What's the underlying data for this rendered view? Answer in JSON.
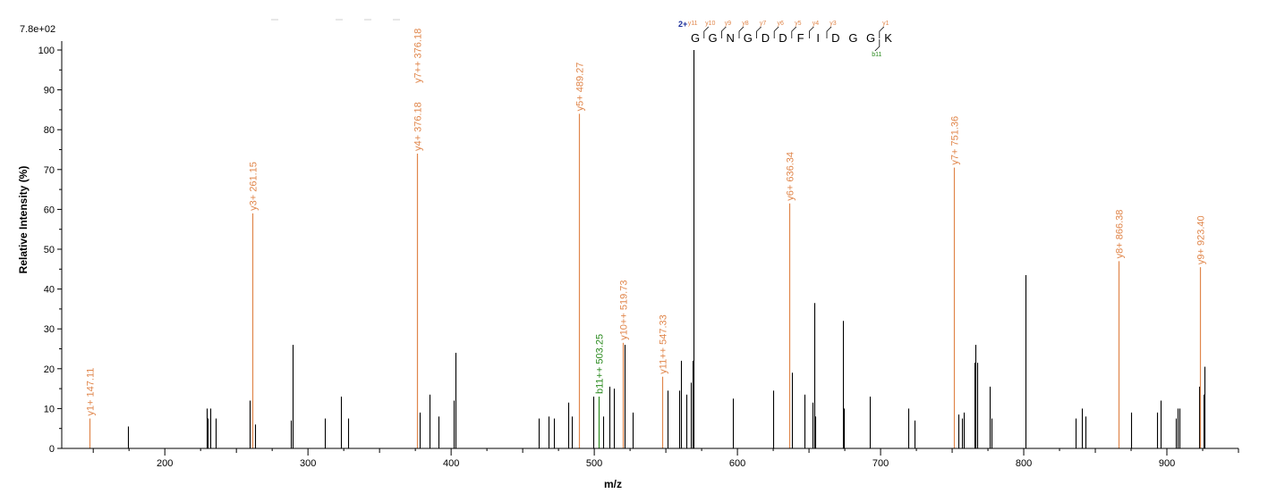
{
  "chart_data": {
    "type": "bar",
    "title": "",
    "xlabel": "m/z",
    "ylabel": "Relative  Intensity (%)",
    "scale_label": "7.8e+02",
    "xlim": [
      128,
      950
    ],
    "ylim": [
      0,
      100
    ],
    "x_ticks": [
      200,
      300,
      400,
      500,
      600,
      700,
      800,
      900
    ],
    "y_ticks": [
      0,
      10,
      20,
      30,
      40,
      50,
      60,
      70,
      80,
      90,
      100
    ],
    "colors": {
      "unannotated": "#000000",
      "y_ion": "#E0864B",
      "b_ion": "#2A8A1E",
      "charge": "#1B2E9A",
      "axis": "#000000"
    },
    "peaks": [
      {
        "mz": 147.11,
        "intensity": 7.5,
        "ion": "y",
        "label": "y1+ 147.11"
      },
      {
        "mz": 174.0,
        "intensity": 5.5
      },
      {
        "mz": 229.0,
        "intensity": 10
      },
      {
        "mz": 230.0,
        "intensity": 7.5
      },
      {
        "mz": 231.5,
        "intensity": 10
      },
      {
        "mz": 235.5,
        "intensity": 7.5
      },
      {
        "mz": 259.5,
        "intensity": 12
      },
      {
        "mz": 261.15,
        "intensity": 59,
        "ion": "y",
        "label": "y3+ 261.15"
      },
      {
        "mz": 263.0,
        "intensity": 6
      },
      {
        "mz": 288.0,
        "intensity": 7
      },
      {
        "mz": 289.0,
        "intensity": 26
      },
      {
        "mz": 312.0,
        "intensity": 7.5
      },
      {
        "mz": 323.0,
        "intensity": 13
      },
      {
        "mz": 328.0,
        "intensity": 7.5
      },
      {
        "mz": 376.18,
        "intensity": 74,
        "ion": "y",
        "label": "y4+ 376.18",
        "label2": "y7++ 376.18"
      },
      {
        "mz": 378.0,
        "intensity": 9
      },
      {
        "mz": 385.0,
        "intensity": 13.5
      },
      {
        "mz": 391.0,
        "intensity": 8
      },
      {
        "mz": 401.5,
        "intensity": 12
      },
      {
        "mz": 403.0,
        "intensity": 24
      },
      {
        "mz": 461.0,
        "intensity": 7.5
      },
      {
        "mz": 468.0,
        "intensity": 8
      },
      {
        "mz": 471.5,
        "intensity": 7.5
      },
      {
        "mz": 481.5,
        "intensity": 11.5
      },
      {
        "mz": 484.5,
        "intensity": 8
      },
      {
        "mz": 489.27,
        "intensity": 84,
        "ion": "y",
        "label": "y5+ 489.27"
      },
      {
        "mz": 499.5,
        "intensity": 13
      },
      {
        "mz": 503.25,
        "intensity": 13,
        "ion": "b",
        "label": "b11++ 503.25"
      },
      {
        "mz": 506.0,
        "intensity": 8
      },
      {
        "mz": 510.5,
        "intensity": 15.5
      },
      {
        "mz": 513.5,
        "intensity": 15
      },
      {
        "mz": 519.73,
        "intensity": 26.5,
        "ion": "y",
        "label": "y10++ 519.73"
      },
      {
        "mz": 521.0,
        "intensity": 26
      },
      {
        "mz": 526.5,
        "intensity": 9
      },
      {
        "mz": 547.33,
        "intensity": 18,
        "ion": "y",
        "label": "y11++ 547.33"
      },
      {
        "mz": 551.0,
        "intensity": 14.5
      },
      {
        "mz": 559.5,
        "intensity": 14.5
      },
      {
        "mz": 560.5,
        "intensity": 22
      },
      {
        "mz": 564.5,
        "intensity": 13.5
      },
      {
        "mz": 567.5,
        "intensity": 16.5
      },
      {
        "mz": 568.5,
        "intensity": 22
      },
      {
        "mz": 569.5,
        "intensity": 100
      },
      {
        "mz": 597.0,
        "intensity": 12.5
      },
      {
        "mz": 625.0,
        "intensity": 14.5
      },
      {
        "mz": 636.34,
        "intensity": 61.5,
        "ion": "y",
        "label": "y6+ 636.34"
      },
      {
        "mz": 638.0,
        "intensity": 19
      },
      {
        "mz": 647.0,
        "intensity": 13.5
      },
      {
        "mz": 652.5,
        "intensity": 11.5
      },
      {
        "mz": 653.5,
        "intensity": 36.5
      },
      {
        "mz": 654.5,
        "intensity": 8
      },
      {
        "mz": 673.5,
        "intensity": 32
      },
      {
        "mz": 674.5,
        "intensity": 10
      },
      {
        "mz": 692.5,
        "intensity": 13
      },
      {
        "mz": 719.5,
        "intensity": 10
      },
      {
        "mz": 724.0,
        "intensity": 7
      },
      {
        "mz": 751.36,
        "intensity": 70.5,
        "ion": "y",
        "label": "y7+ 751.36"
      },
      {
        "mz": 754.5,
        "intensity": 8.5
      },
      {
        "mz": 757.0,
        "intensity": 7.5
      },
      {
        "mz": 758.0,
        "intensity": 9
      },
      {
        "mz": 765.5,
        "intensity": 21.5
      },
      {
        "mz": 766.5,
        "intensity": 26
      },
      {
        "mz": 767.5,
        "intensity": 21.5
      },
      {
        "mz": 776.5,
        "intensity": 15.5
      },
      {
        "mz": 777.5,
        "intensity": 7.5
      },
      {
        "mz": 801.0,
        "intensity": 43.5
      },
      {
        "mz": 836.0,
        "intensity": 7.5
      },
      {
        "mz": 840.5,
        "intensity": 10
      },
      {
        "mz": 843.0,
        "intensity": 8
      },
      {
        "mz": 866.38,
        "intensity": 47,
        "ion": "y",
        "label": "y8+ 866.38"
      },
      {
        "mz": 875.0,
        "intensity": 9
      },
      {
        "mz": 893.0,
        "intensity": 9
      },
      {
        "mz": 895.5,
        "intensity": 12
      },
      {
        "mz": 906.0,
        "intensity": 7.5
      },
      {
        "mz": 907.5,
        "intensity": 10
      },
      {
        "mz": 908.5,
        "intensity": 10
      },
      {
        "mz": 922.5,
        "intensity": 15.5
      },
      {
        "mz": 923.4,
        "intensity": 45.5,
        "ion": "y",
        "label": "y9+ 923.40"
      },
      {
        "mz": 925.5,
        "intensity": 13.5
      },
      {
        "mz": 926.5,
        "intensity": 20.5
      }
    ],
    "sequence": {
      "charge": "2+",
      "residues": [
        "G",
        "G",
        "N",
        "G",
        "D",
        "D",
        "F",
        "I",
        "D",
        "G",
        "G",
        "K"
      ],
      "y_marks": [
        "y11",
        "y10",
        "y9",
        "y8",
        "y7",
        "y6",
        "y5",
        "y4",
        "y3",
        "",
        "",
        "y1"
      ],
      "b_marks": [
        "",
        "",
        "",
        "",
        "",
        "",
        "",
        "",
        "",
        "",
        "b11",
        ""
      ]
    }
  }
}
